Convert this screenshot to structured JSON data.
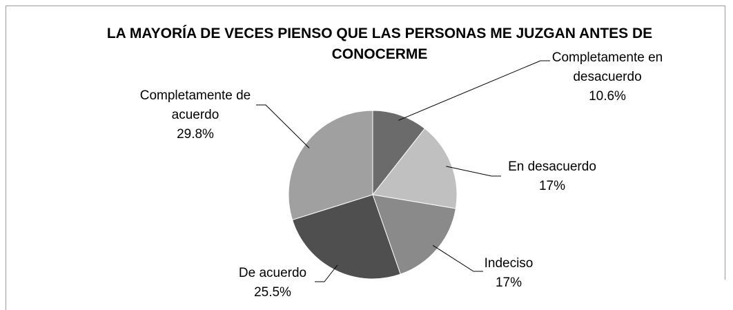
{
  "chart_data": {
    "type": "pie",
    "title": "LA MAYORÍA DE VECES PIENSO QUE LAS PERSONAS ME JUZGAN ANTES DE CONOCERME",
    "categories": [
      "Completamente en desacuerdo",
      "En desacuerdo",
      "Indeciso",
      "De acuerdo",
      "Completamente de acuerdo"
    ],
    "values": [
      10.6,
      17,
      17,
      25.5,
      29.8
    ],
    "value_labels": [
      "10.6%",
      "17%",
      "17%",
      "25.5%",
      "29.8%"
    ],
    "colors": [
      "#6b6b6b",
      "#c0c0c0",
      "#8a8a8a",
      "#4f4f4f",
      "#a0a0a0"
    ]
  }
}
